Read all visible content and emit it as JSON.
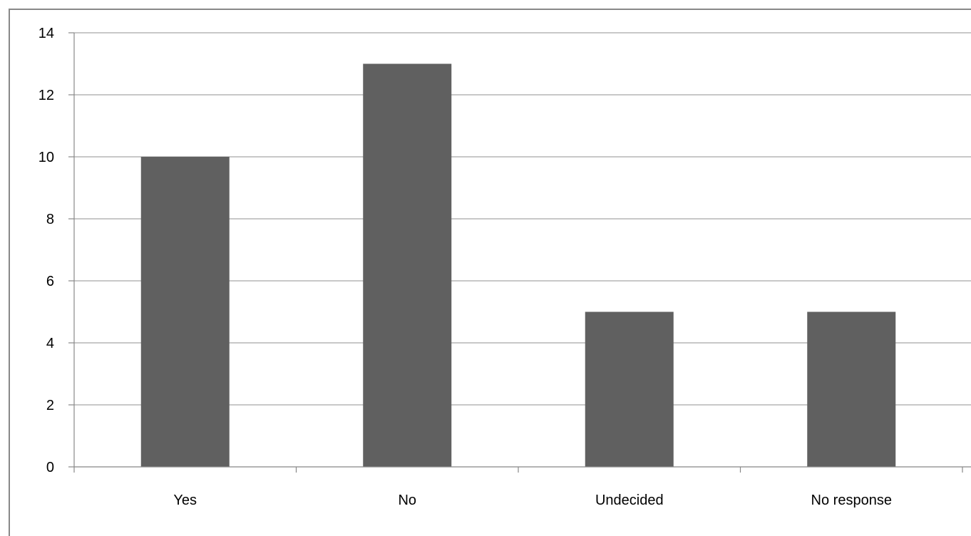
{
  "chart_data": {
    "type": "bar",
    "categories": [
      "Yes",
      "No",
      "Undecided",
      "No response"
    ],
    "values": [
      10,
      13,
      5,
      5
    ],
    "title": "",
    "xlabel": "",
    "ylabel": "",
    "ylim": [
      0,
      14
    ],
    "yticks": [
      "0",
      "2",
      "4",
      "6",
      "8",
      "10",
      "12",
      "14"
    ],
    "grid": true,
    "legend": "none",
    "bar_color": "#606060",
    "grid_color": "#a6a6a6",
    "axis_color": "#888888"
  }
}
